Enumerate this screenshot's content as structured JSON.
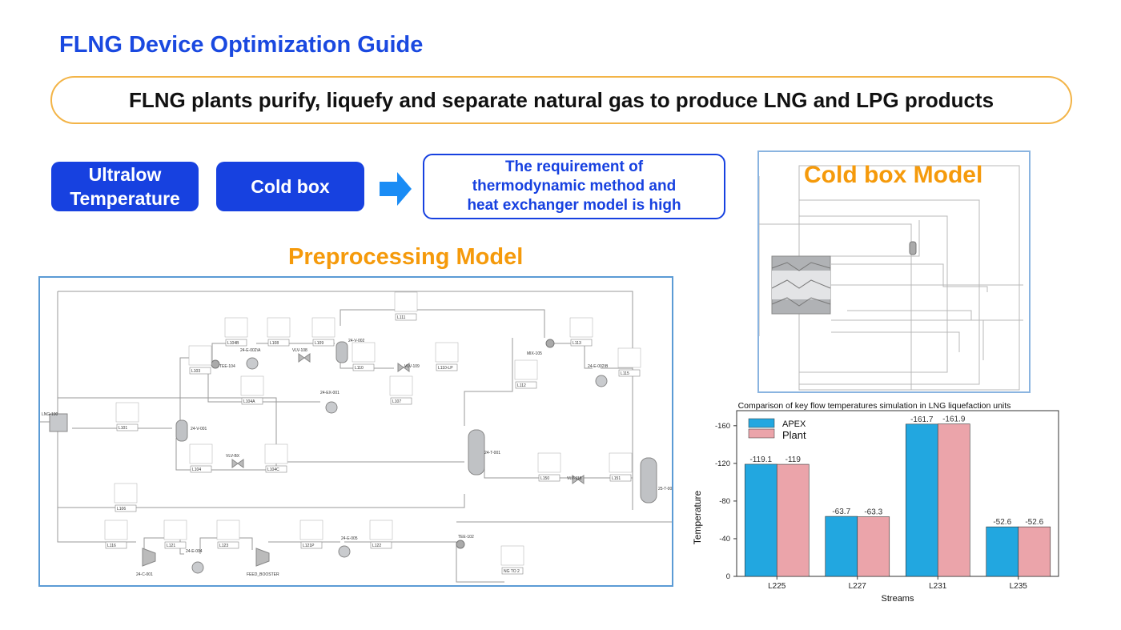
{
  "title": "FLNG Device Optimization Guide",
  "banner": "FLNG plants purify, liquefy and separate natural gas to produce LNG and LPG products",
  "tags": {
    "ultralow_1": "Ultralow",
    "ultralow_2": "Temperature",
    "cold_box": "Cold box"
  },
  "requirement": {
    "line1": "The requirement of",
    "line2": "thermodynamic method and",
    "line3": "heat exchanger model is high"
  },
  "preprocessing": {
    "title": "Preprocessing Model",
    "units": [
      "LNG-100",
      "24-V-001",
      "TEE-104",
      "24-E-002\\A",
      "VLV-108",
      "24-V-002",
      "VLV-109",
      "24-EX-001",
      "MIX-105",
      "24-E-002\\B",
      "24-T-001",
      "VLV-BX",
      "VLV-118",
      "25-T-001",
      "24-C-001",
      "24-E-004",
      "FEED_BOOSTER",
      "24-E-005",
      "TEE-102"
    ],
    "streams": [
      "L101",
      "L103",
      "L104B",
      "L108",
      "L109",
      "L110",
      "L110-LP",
      "L111",
      "L113",
      "L115",
      "L104A",
      "L107",
      "L112",
      "L104",
      "L104C",
      "L106",
      "L116",
      "L121",
      "L123",
      "L121P",
      "L122",
      "L150",
      "L151",
      "NG TO 2"
    ]
  },
  "cold_box": {
    "title": "Cold box Model"
  },
  "chart_data": {
    "type": "bar",
    "title": "Comparison of key flow temperatures simulation in LNG liquefaction units",
    "xlabel": "Streams",
    "ylabel": "Temperature",
    "categories": [
      "L225",
      "L227",
      "L231",
      "L235"
    ],
    "series": [
      {
        "name": "APEX",
        "color": "#22a7e0",
        "values": [
          -119.1,
          -63.7,
          -161.7,
          -52.6
        ],
        "labels": [
          "-119.1",
          "-63.7",
          "-161.7",
          "-52.6"
        ]
      },
      {
        "name": "Plant",
        "color": "#eba4aa",
        "values": [
          -119,
          -63.3,
          -161.9,
          -52.6
        ],
        "labels": [
          "-119",
          "-63.3",
          "-161.9",
          "-52.6"
        ]
      }
    ],
    "yticks": [
      "0",
      "-40",
      "-80",
      "-120",
      "-160"
    ],
    "ytick_values": [
      0,
      -40,
      -80,
      -120,
      -160
    ],
    "ylim": [
      0,
      -176
    ],
    "legend": "top-left"
  }
}
